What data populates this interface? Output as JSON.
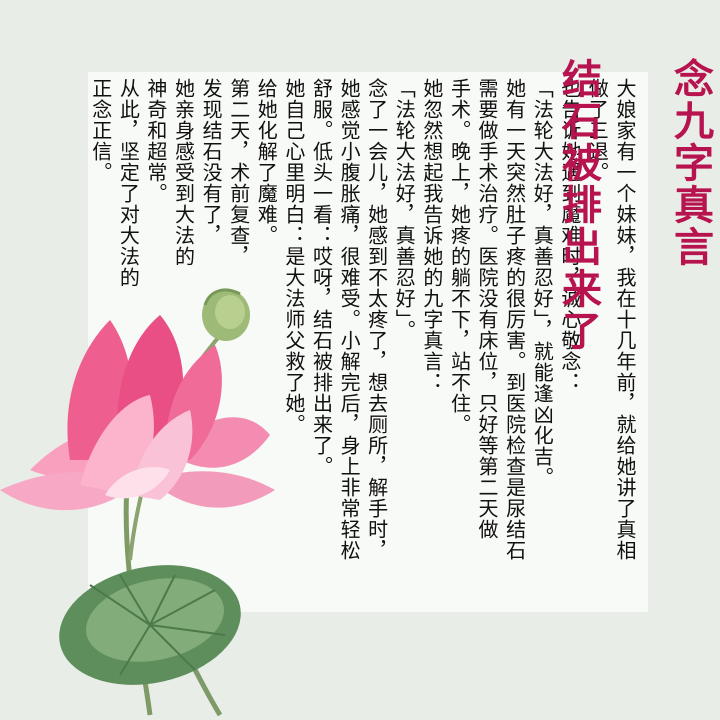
{
  "title": {
    "line1": "念九字真言",
    "line2": "结石被排出来了"
  },
  "body": {
    "columns": [
      "大娘家有一个妹妹，我在十几年前，就给她讲了真相",
      "做了三退。",
      "也告诉她遇到魔难时，诚心敬念：",
      "「法轮大法好，真善忍好」，就能逢凶化吉。",
      "她有一天突然肚子疼的很厉害。到医院检查是尿结石",
      "需要做手术治疗。医院没有床位，只好等第二天做",
      "手术。晚上，她疼的躺不下，站不住。",
      "她忽然想起我告诉她的九字真言：",
      "「法轮大法好，真善忍好」。",
      "念了一会儿，她感到不太疼了，想去厕所，解手时，",
      "她感觉小腹胀痛，很难受。小解完后，身上非常轻松",
      "舒服。低头一看：哎呀，结石被排出来了。",
      "她自己心里明白：是大法师父救了她。",
      "给她化解了魔难。",
      "第二天，术前复查，",
      "发现结石没有了，",
      "她亲身感受到大法的",
      "神奇和超常。",
      "从此，坚定了对大法的",
      "正念正信。"
    ]
  },
  "colors": {
    "title": "#b7134f",
    "background": "#e9ede7",
    "panel": "#f8faf7",
    "lotus_petal": "#f06b98",
    "lotus_leaf": "#6f9a6a"
  },
  "icons": {
    "lotus": "lotus-flower-icon",
    "leaf": "lotus-leaf-icon",
    "bud": "lotus-seedpod-icon"
  }
}
